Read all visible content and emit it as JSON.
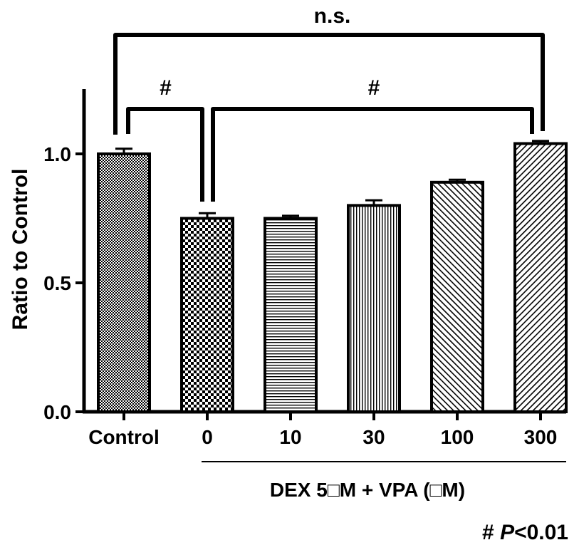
{
  "chart_data": {
    "type": "bar",
    "categories": [
      "Control",
      "0",
      "10",
      "30",
      "100",
      "300"
    ],
    "values": [
      1.0,
      0.75,
      0.75,
      0.8,
      0.89,
      1.04
    ],
    "errors": [
      0.02,
      0.02,
      0.01,
      0.02,
      0.01,
      0.01
    ],
    "ylabel": "Ratio to Control",
    "xgroup_label": "DEX 5□M + VPA (□M)",
    "ylim": [
      0,
      1.25
    ],
    "yticks": [
      "0.0",
      "0.5",
      "1.0"
    ],
    "grid": false,
    "annotations": {
      "top_bracket": "n.s.",
      "left_bracket": "#",
      "right_bracket": "#"
    },
    "footnote_prefix": "# ",
    "footnote_p": "P",
    "footnote_suffix": "<0.01"
  },
  "colors": {
    "ink": "#000000",
    "background": "#ffffff"
  }
}
